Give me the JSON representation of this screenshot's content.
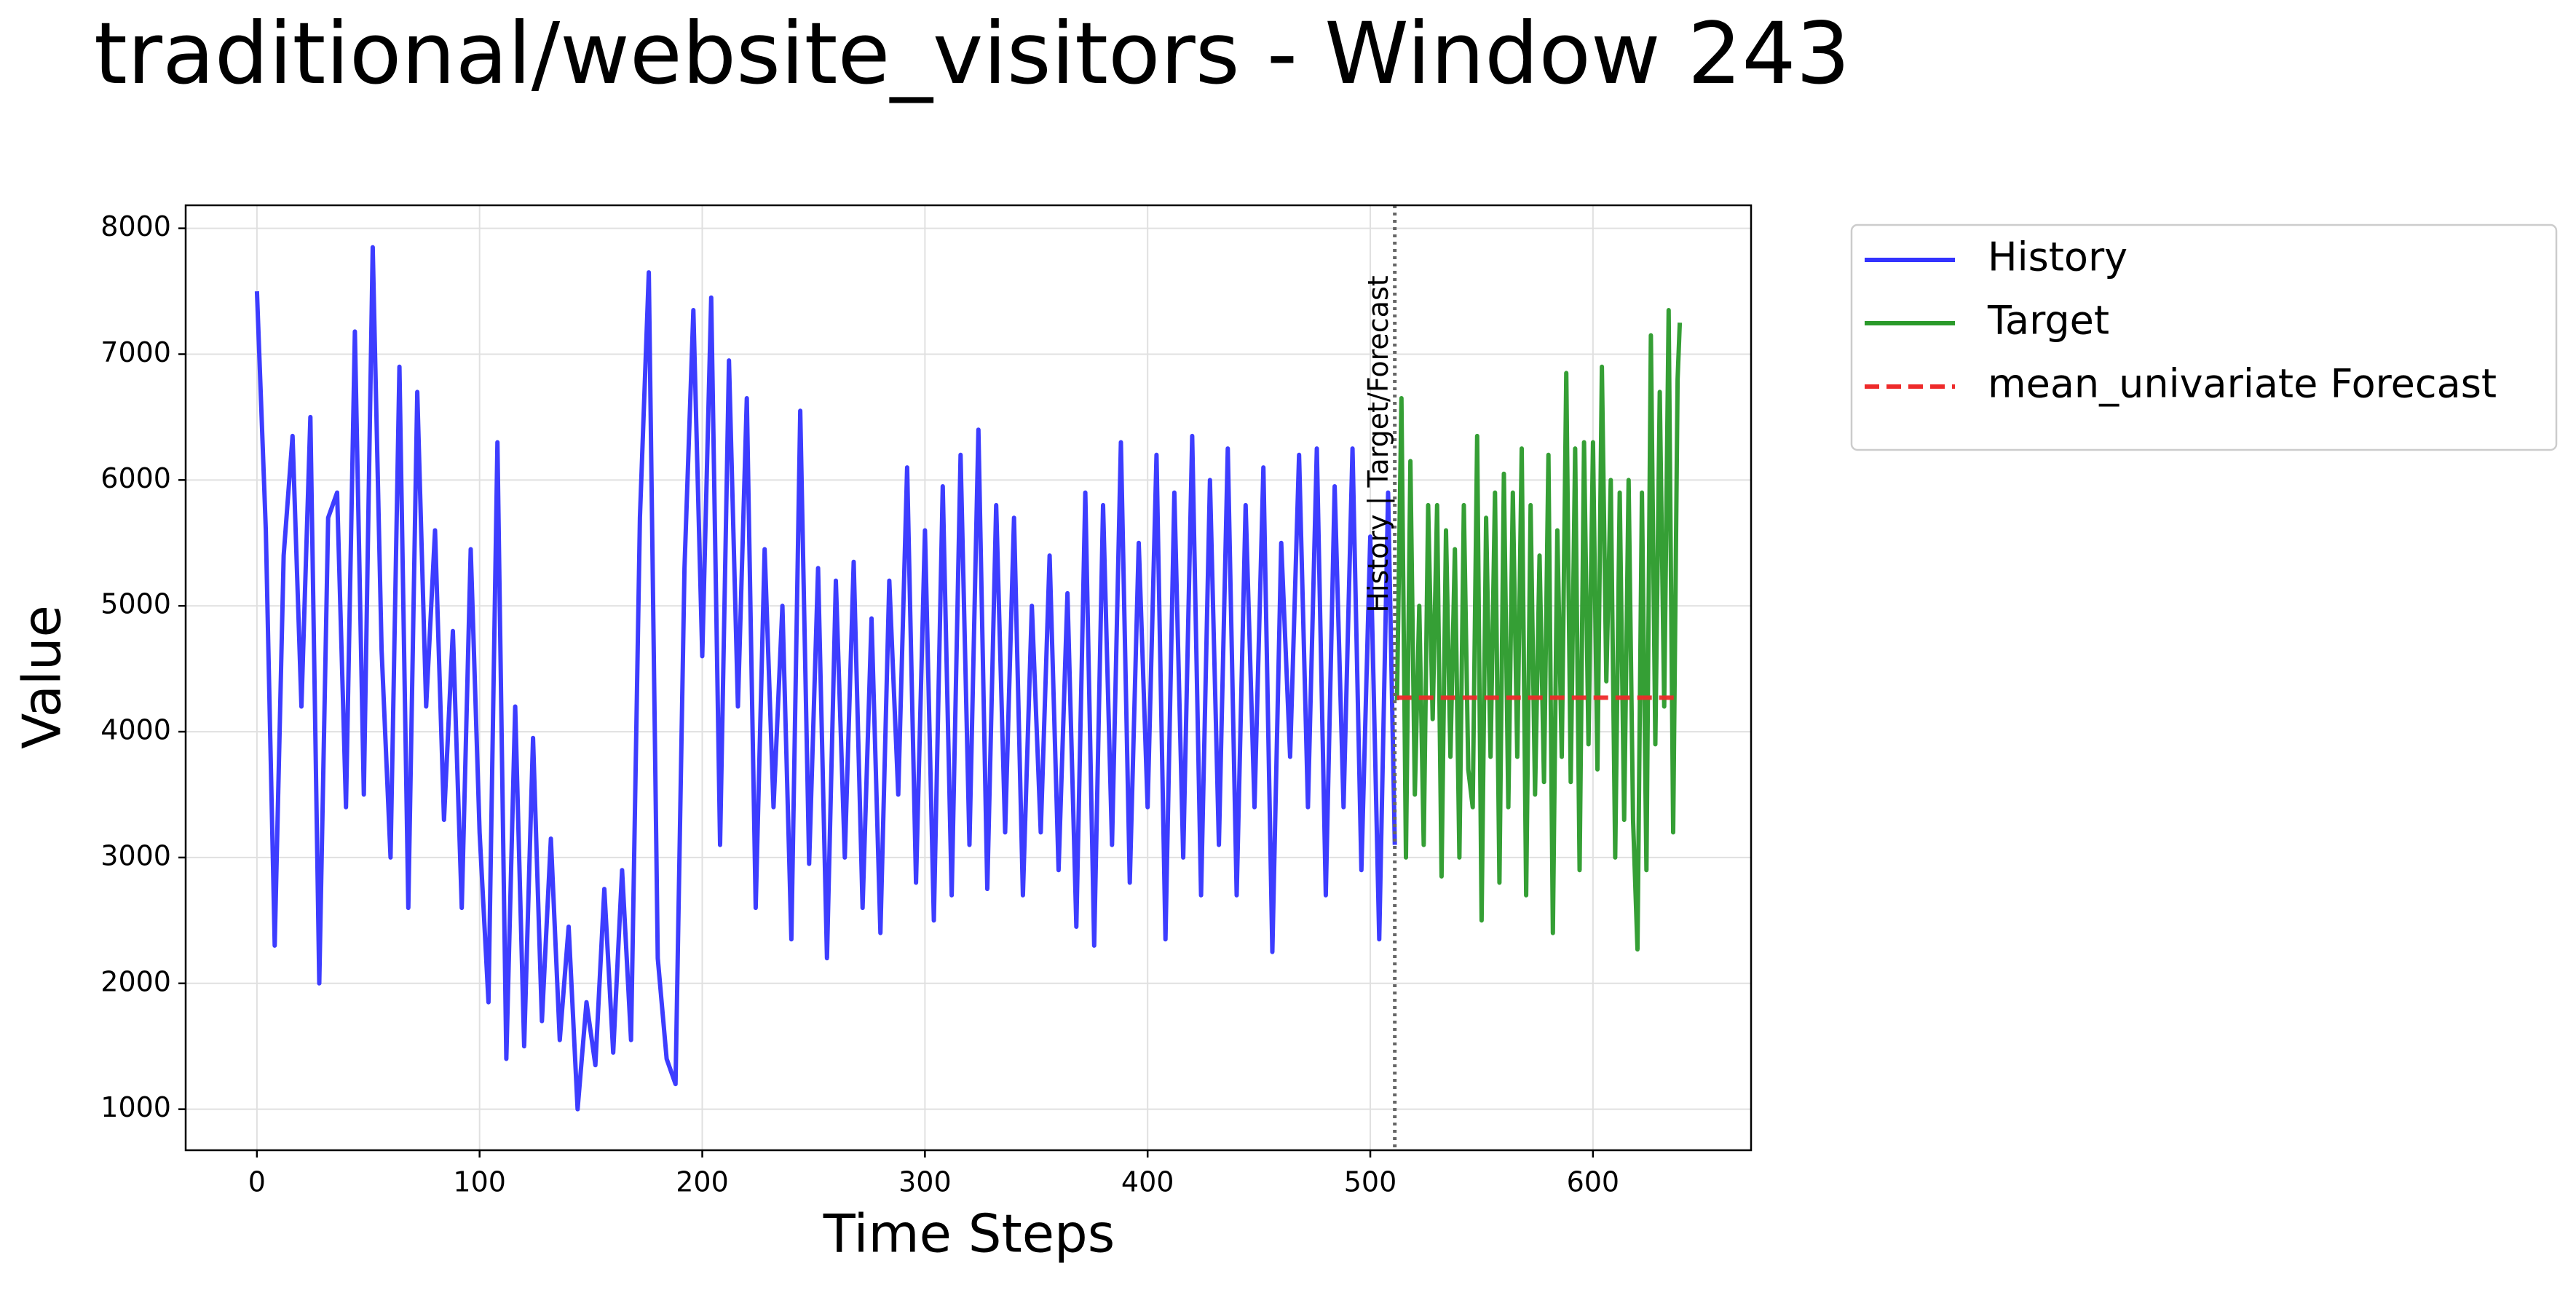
{
  "chart_data": {
    "type": "line",
    "title": "traditional/website_visitors - Window 243",
    "xlabel": "Time Steps",
    "ylabel": "Value",
    "xlim": [
      -32,
      671
    ],
    "ylim": [
      674,
      8183
    ],
    "xticks": [
      0,
      100,
      200,
      300,
      400,
      500,
      600
    ],
    "yticks": [
      1000,
      2000,
      3000,
      4000,
      5000,
      6000,
      7000,
      8000
    ],
    "grid": true,
    "legend": "outside upper right",
    "vline": {
      "x": 511,
      "label": "History | Target/Forecast"
    },
    "series": [
      {
        "name": "History",
        "color": "#3333ff",
        "dash": false,
        "x": [
          0,
          4,
          8,
          12,
          16,
          20,
          24,
          28,
          32,
          36,
          40,
          44,
          48,
          52,
          56,
          60,
          64,
          68,
          72,
          76,
          80,
          84,
          88,
          92,
          96,
          100,
          104,
          108,
          112,
          116,
          120,
          124,
          128,
          132,
          136,
          140,
          144,
          148,
          152,
          156,
          160,
          164,
          168,
          172,
          176,
          180,
          184,
          188,
          192,
          196,
          200,
          204,
          208,
          212,
          216,
          220,
          224,
          228,
          232,
          236,
          240,
          244,
          248,
          252,
          256,
          260,
          264,
          268,
          272,
          276,
          280,
          284,
          288,
          292,
          296,
          300,
          304,
          308,
          312,
          316,
          320,
          324,
          328,
          332,
          336,
          340,
          344,
          348,
          352,
          356,
          360,
          364,
          368,
          372,
          376,
          380,
          384,
          388,
          392,
          396,
          400,
          404,
          408,
          412,
          416,
          420,
          424,
          428,
          432,
          436,
          440,
          444,
          448,
          452,
          456,
          460,
          464,
          468,
          472,
          476,
          480,
          484,
          488,
          492,
          496,
          500,
          504,
          508,
          511
        ],
        "values": [
          7500,
          5600,
          2300,
          5400,
          6350,
          4200,
          6500,
          2000,
          5700,
          5900,
          3400,
          7180,
          3500,
          7850,
          4650,
          3000,
          6900,
          2600,
          6700,
          4200,
          5600,
          3300,
          4800,
          2600,
          5450,
          3200,
          1850,
          6300,
          1400,
          4200,
          1500,
          3950,
          1700,
          3150,
          1550,
          2450,
          1000,
          1850,
          1350,
          2750,
          1450,
          2900,
          1550,
          5700,
          7650,
          2200,
          1400,
          1200,
          5300,
          7350,
          4600,
          7450,
          3100,
          6950,
          4200,
          6650,
          2600,
          5450,
          3400,
          5000,
          2350,
          6550,
          2950,
          5300,
          2200,
          5200,
          3000,
          5350,
          2600,
          4900,
          2400,
          5200,
          3500,
          6100,
          2800,
          5600,
          2500,
          5950,
          2700,
          6200,
          3100,
          6400,
          2750,
          5800,
          3200,
          5700,
          2700,
          5000,
          3200,
          5400,
          2900,
          5100,
          2450,
          5900,
          2300,
          5800,
          3100,
          6300,
          2800,
          5500,
          3400,
          6200,
          2350,
          5900,
          3000,
          6350,
          2700,
          6000,
          3100,
          6250,
          2700,
          5800,
          3400,
          6100,
          2250,
          5500,
          3800,
          6200,
          3400,
          6250,
          2700,
          5950,
          3400,
          6250,
          2900,
          5550,
          2350,
          5900,
          3100
        ]
      },
      {
        "name": "Target",
        "color": "#2a9a2a",
        "dash": false,
        "x": [
          512,
          514,
          516,
          518,
          520,
          522,
          524,
          526,
          528,
          530,
          532,
          534,
          536,
          538,
          540,
          542,
          544,
          546,
          548,
          550,
          552,
          554,
          556,
          558,
          560,
          562,
          564,
          566,
          568,
          570,
          572,
          574,
          576,
          578,
          580,
          582,
          584,
          586,
          588,
          590,
          592,
          594,
          596,
          598,
          600,
          602,
          604,
          606,
          608,
          610,
          612,
          614,
          616,
          618,
          620,
          622,
          624,
          626,
          628,
          630,
          632,
          634,
          636,
          638,
          639
        ],
        "values": [
          4250,
          6650,
          3000,
          6150,
          3500,
          5000,
          3100,
          5800,
          4100,
          5800,
          2850,
          5600,
          3800,
          5450,
          3000,
          5800,
          3700,
          3400,
          6350,
          2500,
          5700,
          3800,
          5900,
          2800,
          6050,
          3400,
          5900,
          3800,
          6250,
          2700,
          5800,
          3500,
          5400,
          3600,
          6200,
          2400,
          5600,
          3800,
          6850,
          3600,
          6250,
          2900,
          6300,
          3900,
          6300,
          3700,
          6900,
          4400,
          6000,
          3000,
          5900,
          3300,
          6000,
          3300,
          2270,
          5900,
          2900,
          7150,
          3900,
          6700,
          4200,
          7350,
          3200,
          6800,
          7250
        ]
      },
      {
        "name": "mean_univariate Forecast",
        "color": "#ee2a2a",
        "dash": true,
        "x": [
          512,
          639
        ],
        "values": [
          4270,
          4270
        ]
      }
    ]
  }
}
